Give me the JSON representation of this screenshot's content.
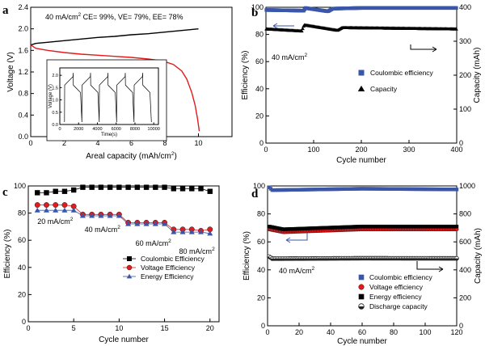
{
  "chart_data": [
    {
      "panel": "a",
      "type": "line",
      "annotation": "40 mA/cm² CE= 99%, VE= 79%, EE= 78%",
      "annotation_parts": [
        "40 mA/cm",
        "2",
        " CE= 99%,  VE= 79%,  EE= 78%"
      ],
      "xlabel": "Areal capacity (mAh/cm²)",
      "xlabel_parts": [
        "Areal capacity (mAh/cm",
        "2",
        ")"
      ],
      "ylabel": "Voltage (V)",
      "xlim": [
        0,
        12
      ],
      "ylim": [
        0,
        2.4
      ],
      "xticks": [
        0,
        2,
        4,
        6,
        8,
        10
      ],
      "yticks": [
        0,
        0.4,
        0.8,
        1.2,
        1.6,
        2.0,
        2.4
      ],
      "ytick_labels": [
        "0.0",
        "0.4",
        "0.8",
        "1.2",
        "1.6",
        "2.0",
        "2.4"
      ],
      "series": [
        {
          "role": "charge",
          "color": "#000000",
          "x": [
            0,
            0.3,
            1,
            2,
            3,
            4,
            5,
            6,
            7,
            8,
            9,
            10
          ],
          "y": [
            1.7,
            1.73,
            1.75,
            1.78,
            1.81,
            1.84,
            1.86,
            1.89,
            1.91,
            1.94,
            1.97,
            2.0
          ]
        },
        {
          "role": "discharge",
          "color": "#e41a1c",
          "x": [
            0,
            0.3,
            1,
            2,
            3,
            4,
            5,
            6,
            7,
            7.5,
            8,
            8.5,
            9,
            9.3,
            9.6,
            9.8,
            9.95,
            10.05
          ],
          "y": [
            1.7,
            1.64,
            1.6,
            1.56,
            1.53,
            1.51,
            1.49,
            1.47,
            1.44,
            1.42,
            1.39,
            1.34,
            1.22,
            1.07,
            0.82,
            0.58,
            0.32,
            0.1
          ]
        }
      ],
      "inset": {
        "xlabel": "Time(s)",
        "ylabel": "Voltage (V)",
        "xlim": [
          0,
          10500
        ],
        "ylim": [
          0,
          2.3
        ],
        "xticks": [
          0,
          2000,
          4000,
          6000,
          8000,
          10000
        ],
        "yticks": [
          0,
          0.5,
          1.0,
          1.5,
          2.0
        ],
        "ytick_labels": [
          "0.0",
          "0.5",
          "1.0",
          "1.5",
          "2.0"
        ],
        "cycles": 5,
        "cycle_start": 500,
        "cycle_period": 1850
      }
    },
    {
      "panel": "b",
      "type": "scatter",
      "xlabel": "Cycle number",
      "ylabel": "Efficiency (%)",
      "y2label": "Capacity (mAh)",
      "xlim": [
        0,
        400
      ],
      "ylim": [
        0,
        100
      ],
      "y2lim": [
        0,
        400
      ],
      "xticks": [
        0,
        100,
        200,
        300,
        400
      ],
      "yticks": [
        0,
        20,
        40,
        60,
        80,
        100
      ],
      "y2ticks": [
        0,
        100,
        200,
        300,
        400
      ],
      "annotation_parts": [
        "40 mA/cm",
        "2"
      ],
      "series": [
        {
          "name": "Coulombic efficiency",
          "axis": "left",
          "color": "#3a56a8",
          "marker": "square",
          "x_range": [
            1,
            400
          ],
          "values": [
            {
              "x": 1,
              "y": 98
            },
            {
              "x": 80,
              "y": 97.5
            },
            {
              "x": 82,
              "y": 99.5
            },
            {
              "x": 130,
              "y": 97
            },
            {
              "x": 140,
              "y": 99
            },
            {
              "x": 200,
              "y": 99.5
            },
            {
              "x": 400,
              "y": 99.5
            }
          ]
        },
        {
          "name": "Capacity",
          "axis": "right",
          "color": "#000000",
          "marker": "triangle",
          "x_range": [
            1,
            400
          ],
          "values": [
            {
              "x": 1,
              "y": 336
            },
            {
              "x": 75,
              "y": 330
            },
            {
              "x": 80,
              "y": 348
            },
            {
              "x": 150,
              "y": 332
            },
            {
              "x": 160,
              "y": 340
            },
            {
              "x": 400,
              "y": 336
            }
          ]
        }
      ]
    },
    {
      "panel": "c",
      "type": "line",
      "xlabel": "Cycle number",
      "ylabel": "Efficiency (%)",
      "xlim": [
        0,
        21
      ],
      "ylim": [
        0,
        100
      ],
      "xticks": [
        0,
        5,
        10,
        15,
        20
      ],
      "yticks": [
        0,
        20,
        40,
        60,
        80,
        100
      ],
      "x": [
        1,
        2,
        3,
        4,
        5,
        6,
        7,
        8,
        9,
        10,
        11,
        12,
        13,
        14,
        15,
        16,
        17,
        18,
        19,
        20
      ],
      "series": [
        {
          "name": "Coulombic Efficiency",
          "color": "#000000",
          "marker": "square",
          "values": [
            95,
            95,
            96,
            96,
            97,
            99,
            99,
            99,
            99,
            99,
            99,
            99,
            99,
            99,
            99,
            98,
            98,
            98,
            98,
            96
          ]
        },
        {
          "name": "Voltage Efficiency",
          "color": "#e41a1c",
          "marker": "circle",
          "values": [
            86,
            86,
            86,
            86,
            85,
            79,
            79,
            79,
            79,
            79,
            73,
            73,
            73,
            73,
            73,
            68,
            68,
            68,
            67,
            68
          ]
        },
        {
          "name": "Energy Efficiency",
          "color": "#3a56a8",
          "marker": "triangle",
          "values": [
            82,
            82,
            82,
            82,
            82,
            78,
            78,
            78,
            78,
            78,
            72,
            72,
            72,
            72,
            72,
            66,
            66,
            66,
            66,
            65
          ]
        }
      ],
      "annotations": [
        {
          "text_parts": [
            "20 mA/cm",
            "2"
          ],
          "x": 1.0,
          "y": 72
        },
        {
          "text_parts": [
            "40 mA/cm",
            "2"
          ],
          "x": 6.2,
          "y": 66
        },
        {
          "text_parts": [
            "60 mA/cm",
            "2"
          ],
          "x": 11.8,
          "y": 56
        },
        {
          "text_parts": [
            "80 mA/cm",
            "2"
          ],
          "x": 16.6,
          "y": 50
        }
      ]
    },
    {
      "panel": "d",
      "type": "scatter",
      "xlabel": "Cycle number",
      "ylabel": "Efficiency (%)",
      "y2label": "Capacity (mAh)",
      "xlim": [
        0,
        120
      ],
      "ylim": [
        0,
        100
      ],
      "y2lim": [
        0,
        1000
      ],
      "xticks": [
        0,
        20,
        40,
        60,
        80,
        100,
        120
      ],
      "yticks": [
        0,
        20,
        40,
        60,
        80,
        100
      ],
      "y2ticks": [
        0,
        200,
        400,
        600,
        800,
        1000
      ],
      "annotation_parts": [
        "40 mA/cm",
        "2"
      ],
      "series": [
        {
          "name": "Coulombic efficiency",
          "axis": "left",
          "color": "#3a56a8",
          "marker": "square",
          "x_range": [
            1,
            120
          ],
          "values": [
            {
              "x": 1,
              "y": 99
            },
            {
              "x": 3,
              "y": 97
            },
            {
              "x": 60,
              "y": 98
            },
            {
              "x": 120,
              "y": 97.5
            }
          ]
        },
        {
          "name": "Voltage efficiency",
          "axis": "left",
          "color": "#e41a1c",
          "marker": "circle",
          "x_range": [
            1,
            120
          ],
          "values": [
            {
              "x": 1,
              "y": 69
            },
            {
              "x": 10,
              "y": 67
            },
            {
              "x": 60,
              "y": 69
            },
            {
              "x": 120,
              "y": 69
            }
          ]
        },
        {
          "name": "Energy efficiency",
          "axis": "left",
          "color": "#000000",
          "marker": "square",
          "x_range": [
            1,
            120
          ],
          "values": [
            {
              "x": 1,
              "y": 71
            },
            {
              "x": 10,
              "y": 69
            },
            {
              "x": 60,
              "y": 71
            },
            {
              "x": 120,
              "y": 71
            }
          ]
        },
        {
          "name": "Discharge capacity",
          "axis": "right",
          "color": "#555555",
          "marker": "circle-half",
          "x_range": [
            1,
            120
          ],
          "values": [
            {
              "x": 1,
              "y": 495
            },
            {
              "x": 3,
              "y": 480
            },
            {
              "x": 60,
              "y": 483
            },
            {
              "x": 120,
              "y": 482
            }
          ]
        }
      ]
    }
  ]
}
